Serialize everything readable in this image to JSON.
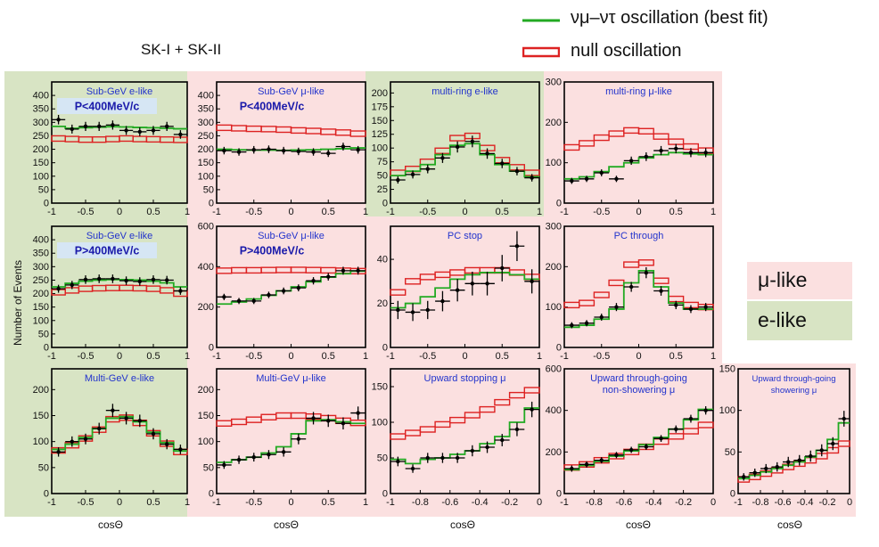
{
  "legend": {
    "oscillation": "νμ–ντ oscillation (best fit)",
    "null": "null oscillation",
    "mu_like": "μ-like",
    "e_like": "e-like",
    "colors": {
      "oscillation": "#22aa22",
      "null": "#dd2222",
      "mu_like_bg": "#fbe0e0",
      "e_like_bg": "#d8e4c4"
    }
  },
  "header": {
    "dataset": "SK-I + SK-II"
  },
  "axes": {
    "ylabel": "Number of Events",
    "xlabel": "cosΘ"
  },
  "chart_data": [
    {
      "type": "line",
      "title": "Sub-GeV e-like",
      "box": "P<400MeV/c",
      "x": [
        -0.9,
        -0.7,
        -0.5,
        -0.3,
        -0.1,
        0.1,
        0.3,
        0.5,
        0.7,
        0.9
      ],
      "xlim": [
        -1,
        1
      ],
      "xticks": [
        -1,
        -0.5,
        0,
        0.5,
        1
      ],
      "xticklabels": [
        "-1",
        "-0.5",
        "0",
        "0.5",
        "1"
      ],
      "ylim": [
        0,
        450
      ],
      "yticks": [
        0,
        50,
        100,
        150,
        200,
        250,
        300,
        350,
        400
      ],
      "series": [
        {
          "name": "data",
          "values": [
            310,
            275,
            285,
            285,
            290,
            270,
            265,
            270,
            285,
            255
          ]
        },
        {
          "name": "oscillation",
          "values": [
            285,
            278,
            280,
            282,
            284,
            283,
            281,
            280,
            278,
            276
          ]
        },
        {
          "name": "null",
          "values": [
            240,
            238,
            236,
            236,
            238,
            240,
            238,
            237,
            236,
            235
          ]
        }
      ]
    },
    {
      "type": "line",
      "title": "Sub-GeV μ-like",
      "box": "P<400MeV/c",
      "x": [
        -0.9,
        -0.7,
        -0.5,
        -0.3,
        -0.1,
        0.1,
        0.3,
        0.5,
        0.7,
        0.9
      ],
      "xlim": [
        -1,
        1
      ],
      "xticks": [
        -1,
        -0.5,
        0,
        0.5,
        1
      ],
      "xticklabels": [
        "-1",
        "-0.5",
        "0",
        "0.5",
        "1"
      ],
      "ylim": [
        0,
        450
      ],
      "yticks": [
        0,
        50,
        100,
        150,
        200,
        250,
        300,
        350,
        400
      ],
      "series": [
        {
          "name": "data",
          "values": [
            195,
            190,
            198,
            200,
            195,
            192,
            190,
            185,
            210,
            198
          ]
        },
        {
          "name": "oscillation",
          "values": [
            200,
            198,
            197,
            197,
            196,
            197,
            198,
            200,
            202,
            205
          ]
        },
        {
          "name": "null",
          "values": [
            280,
            278,
            276,
            275,
            273,
            270,
            268,
            265,
            262,
            258
          ]
        }
      ]
    },
    {
      "type": "line",
      "title": "multi-ring e-like",
      "box": "",
      "x": [
        -0.9,
        -0.7,
        -0.5,
        -0.3,
        -0.1,
        0.1,
        0.3,
        0.5,
        0.7,
        0.9
      ],
      "xlim": [
        -1,
        1
      ],
      "xticks": [
        -1,
        -0.5,
        0,
        0.5,
        1
      ],
      "xticklabels": [
        "-1",
        "-0.5",
        "0",
        "0.5",
        "1"
      ],
      "ylim": [
        0,
        220
      ],
      "yticks": [
        0,
        25,
        50,
        75,
        100,
        125,
        150,
        175,
        200
      ],
      "series": [
        {
          "name": "data",
          "values": [
            42,
            52,
            62,
            82,
            102,
            112,
            90,
            72,
            58,
            46
          ]
        },
        {
          "name": "oscillation",
          "values": [
            50,
            58,
            70,
            88,
            105,
            108,
            88,
            70,
            58,
            48
          ]
        },
        {
          "name": "null",
          "values": [
            55,
            62,
            75,
            95,
            118,
            122,
            100,
            78,
            65,
            55
          ]
        }
      ]
    },
    {
      "type": "line",
      "title": "multi-ring μ-like",
      "box": "",
      "x": [
        -0.9,
        -0.7,
        -0.5,
        -0.3,
        -0.1,
        0.1,
        0.3,
        0.5,
        0.7,
        0.9
      ],
      "xlim": [
        -1,
        1
      ],
      "xticks": [
        -1,
        -0.5,
        0,
        0.5,
        1
      ],
      "xticklabels": [
        "-1",
        "-0.5",
        "0",
        "0.5",
        "1"
      ],
      "ylim": [
        0,
        300
      ],
      "yticks": [
        0,
        100,
        200,
        300
      ],
      "series": [
        {
          "name": "data",
          "values": [
            55,
            60,
            75,
            60,
            105,
            115,
            130,
            135,
            125,
            125
          ]
        },
        {
          "name": "oscillation",
          "values": [
            60,
            65,
            78,
            90,
            100,
            112,
            120,
            125,
            122,
            120
          ]
        },
        {
          "name": "null",
          "values": [
            138,
            148,
            162,
            172,
            180,
            178,
            165,
            152,
            140,
            130
          ]
        }
      ]
    },
    {
      "type": "line",
      "title": "Sub-GeV e-like",
      "box": "P>400MeV/c",
      "x": [
        -0.9,
        -0.7,
        -0.5,
        -0.3,
        -0.1,
        0.1,
        0.3,
        0.5,
        0.7,
        0.9
      ],
      "xlim": [
        -1,
        1
      ],
      "xticks": [
        -1,
        -0.5,
        0,
        0.5,
        1
      ],
      "xticklabels": [
        "-1",
        "-0.5",
        "0",
        "0.5",
        "1"
      ],
      "ylim": [
        0,
        450
      ],
      "yticks": [
        0,
        50,
        100,
        150,
        200,
        250,
        300,
        350,
        400
      ],
      "series": [
        {
          "name": "data",
          "values": [
            218,
            232,
            252,
            255,
            255,
            248,
            245,
            252,
            250,
            210
          ]
        },
        {
          "name": "oscillation",
          "values": [
            225,
            238,
            246,
            250,
            252,
            252,
            250,
            246,
            240,
            225
          ]
        },
        {
          "name": "null",
          "values": [
            205,
            212,
            218,
            220,
            221,
            221,
            220,
            218,
            212,
            200
          ]
        }
      ]
    },
    {
      "type": "line",
      "title": "Sub-GeV μ-like",
      "box": "P>400MeV/c",
      "x": [
        -0.9,
        -0.7,
        -0.5,
        -0.3,
        -0.1,
        0.1,
        0.3,
        0.5,
        0.7,
        0.9
      ],
      "xlim": [
        -1,
        1
      ],
      "xticks": [
        -1,
        -0.5,
        0,
        0.5,
        1
      ],
      "xticklabels": [
        "-1",
        "-0.5",
        "0",
        "0.5",
        "1"
      ],
      "ylim": [
        0,
        600
      ],
      "yticks": [
        0,
        200,
        400,
        600
      ],
      "series": [
        {
          "name": "data",
          "values": [
            250,
            230,
            230,
            260,
            280,
            295,
            330,
            350,
            380,
            380
          ]
        },
        {
          "name": "oscillation",
          "values": [
            215,
            225,
            240,
            258,
            280,
            300,
            325,
            348,
            365,
            378
          ]
        },
        {
          "name": "null",
          "values": [
            380,
            382,
            382,
            383,
            384,
            384,
            383,
            382,
            380,
            378
          ]
        }
      ]
    },
    {
      "type": "line",
      "title": "PC stop",
      "box": "",
      "x": [
        -0.9,
        -0.7,
        -0.5,
        -0.3,
        -0.1,
        0.1,
        0.3,
        0.5,
        0.7,
        0.9
      ],
      "xlim": [
        -1,
        1
      ],
      "xticks": [
        -1,
        -0.5,
        0,
        0.5,
        1
      ],
      "xticklabels": [
        "-1",
        "-0.5",
        "0",
        "0.5",
        "1"
      ],
      "ylim": [
        0,
        55
      ],
      "yticks": [
        0,
        20,
        40
      ],
      "series": [
        {
          "name": "data",
          "values": [
            17,
            16,
            17,
            21,
            26,
            29,
            29,
            36,
            46,
            30
          ]
        },
        {
          "name": "oscillation",
          "values": [
            18,
            20,
            23,
            27,
            31,
            33,
            34,
            34,
            33,
            31
          ]
        },
        {
          "name": "null",
          "values": [
            25,
            30,
            32,
            33,
            34,
            35,
            35,
            35,
            34,
            32
          ]
        }
      ]
    },
    {
      "type": "line",
      "title": "PC through",
      "box": "",
      "x": [
        -0.9,
        -0.7,
        -0.5,
        -0.3,
        -0.1,
        0.1,
        0.3,
        0.5,
        0.7,
        0.9
      ],
      "xlim": [
        -1,
        1
      ],
      "xticks": [
        -1,
        -0.5,
        0,
        0.5,
        1
      ],
      "xticklabels": [
        "-1",
        "-0.5",
        "0",
        "0.5",
        "1"
      ],
      "ylim": [
        0,
        300
      ],
      "yticks": [
        0,
        100,
        200,
        300
      ],
      "series": [
        {
          "name": "data",
          "values": [
            55,
            60,
            75,
            100,
            150,
            185,
            140,
            105,
            95,
            100
          ]
        },
        {
          "name": "oscillation",
          "values": [
            50,
            55,
            70,
            95,
            160,
            190,
            150,
            110,
            95,
            95
          ]
        },
        {
          "name": "null",
          "values": [
            105,
            110,
            130,
            160,
            205,
            210,
            165,
            120,
            105,
            100
          ]
        }
      ]
    },
    {
      "type": "line",
      "title": "Multi-GeV e-like",
      "box": "",
      "x": [
        -0.9,
        -0.7,
        -0.5,
        -0.3,
        -0.1,
        0.1,
        0.3,
        0.5,
        0.7,
        0.9
      ],
      "xlim": [
        -1,
        1
      ],
      "xticks": [
        -1,
        -0.5,
        0,
        0.5,
        1
      ],
      "xticklabels": [
        "-1",
        "-0.5",
        "0",
        "0.5",
        "1"
      ],
      "ylim": [
        0,
        240
      ],
      "yticks": [
        0,
        50,
        100,
        150,
        200
      ],
      "series": [
        {
          "name": "data",
          "values": [
            80,
            100,
            105,
            125,
            160,
            145,
            140,
            115,
            95,
            85
          ]
        },
        {
          "name": "oscillation",
          "values": [
            85,
            95,
            108,
            125,
            145,
            148,
            138,
            118,
            98,
            82
          ]
        },
        {
          "name": "null",
          "values": [
            83,
            93,
            106,
            123,
            143,
            146,
            136,
            116,
            96,
            80
          ]
        }
      ]
    },
    {
      "type": "line",
      "title": "Multi-GeV μ-like",
      "box": "",
      "x": [
        -0.9,
        -0.7,
        -0.5,
        -0.3,
        -0.1,
        0.1,
        0.3,
        0.5,
        0.7,
        0.9
      ],
      "xlim": [
        -1,
        1
      ],
      "xticks": [
        -1,
        -0.5,
        0,
        0.5,
        1
      ],
      "xticklabels": [
        "-1",
        "-0.5",
        "0",
        "0.5",
        "1"
      ],
      "ylim": [
        0,
        240
      ],
      "yticks": [
        0,
        50,
        100,
        150,
        200
      ],
      "series": [
        {
          "name": "data",
          "values": [
            55,
            65,
            70,
            75,
            80,
            105,
            145,
            140,
            135,
            155
          ]
        },
        {
          "name": "oscillation",
          "values": [
            60,
            65,
            70,
            78,
            90,
            115,
            140,
            142,
            138,
            135
          ]
        },
        {
          "name": "null",
          "values": [
            135,
            138,
            142,
            147,
            150,
            150,
            148,
            145,
            140,
            136
          ]
        }
      ]
    },
    {
      "type": "line",
      "title": "Upward stopping μ",
      "box": "",
      "x": [
        -0.95,
        -0.85,
        -0.75,
        -0.65,
        -0.55,
        -0.45,
        -0.35,
        -0.25,
        -0.15,
        -0.05
      ],
      "xlim": [
        -1,
        0
      ],
      "xticks": [
        -1,
        -0.8,
        -0.6,
        -0.4,
        -0.2,
        0
      ],
      "xticklabels": [
        "-1",
        "-0.8",
        "-0.6",
        "-0.4",
        "-0.2",
        "0"
      ],
      "ylim": [
        0,
        175
      ],
      "yticks": [
        0,
        50,
        100,
        150
      ],
      "series": [
        {
          "name": "data",
          "values": [
            45,
            35,
            50,
            50,
            50,
            60,
            65,
            75,
            90,
            118
          ]
        },
        {
          "name": "oscillation",
          "values": [
            48,
            42,
            48,
            50,
            55,
            60,
            70,
            80,
            100,
            120
          ]
        },
        {
          "name": "null",
          "values": [
            80,
            85,
            90,
            97,
            103,
            110,
            118,
            128,
            138,
            145
          ]
        }
      ]
    },
    {
      "type": "line",
      "title": "Upward through-going non-showering μ",
      "box": "",
      "x": [
        -0.95,
        -0.85,
        -0.75,
        -0.65,
        -0.55,
        -0.45,
        -0.35,
        -0.25,
        -0.15,
        -0.05
      ],
      "xlim": [
        -1,
        0
      ],
      "xticks": [
        -1,
        -0.8,
        -0.6,
        -0.4,
        -0.2,
        0
      ],
      "xticklabels": [
        "-1",
        "-0.8",
        "-0.6",
        "-0.4",
        "-0.2",
        "0"
      ],
      "ylim": [
        0,
        600
      ],
      "yticks": [
        0,
        200,
        400,
        600
      ],
      "series": [
        {
          "name": "data",
          "values": [
            120,
            140,
            160,
            185,
            210,
            225,
            265,
            310,
            360,
            400
          ]
        },
        {
          "name": "oscillation",
          "values": [
            115,
            135,
            155,
            180,
            205,
            235,
            270,
            310,
            355,
            405
          ]
        },
        {
          "name": "null",
          "values": [
            125,
            140,
            160,
            180,
            200,
            225,
            250,
            275,
            300,
            330
          ]
        }
      ]
    },
    {
      "type": "line",
      "title": "Upward through-going showering μ",
      "box": "",
      "x": [
        -0.95,
        -0.85,
        -0.75,
        -0.65,
        -0.55,
        -0.45,
        -0.35,
        -0.25,
        -0.15,
        -0.05
      ],
      "xlim": [
        -1,
        0
      ],
      "xticks": [
        -1,
        -0.8,
        -0.6,
        -0.4,
        -0.2,
        0
      ],
      "xticklabels": [
        "-1",
        "-0.8",
        "-0.6",
        "-0.4",
        "-0.2",
        "0"
      ],
      "ylim": [
        0,
        150
      ],
      "yticks": [
        0,
        50,
        100,
        150
      ],
      "series": [
        {
          "name": "data",
          "values": [
            20,
            25,
            30,
            32,
            38,
            40,
            45,
            52,
            60,
            90
          ]
        },
        {
          "name": "oscillation",
          "values": [
            18,
            22,
            26,
            30,
            34,
            38,
            44,
            52,
            65,
            85
          ]
        },
        {
          "name": "null",
          "values": [
            17,
            20,
            24,
            28,
            32,
            36,
            40,
            45,
            52,
            60
          ]
        }
      ]
    }
  ]
}
